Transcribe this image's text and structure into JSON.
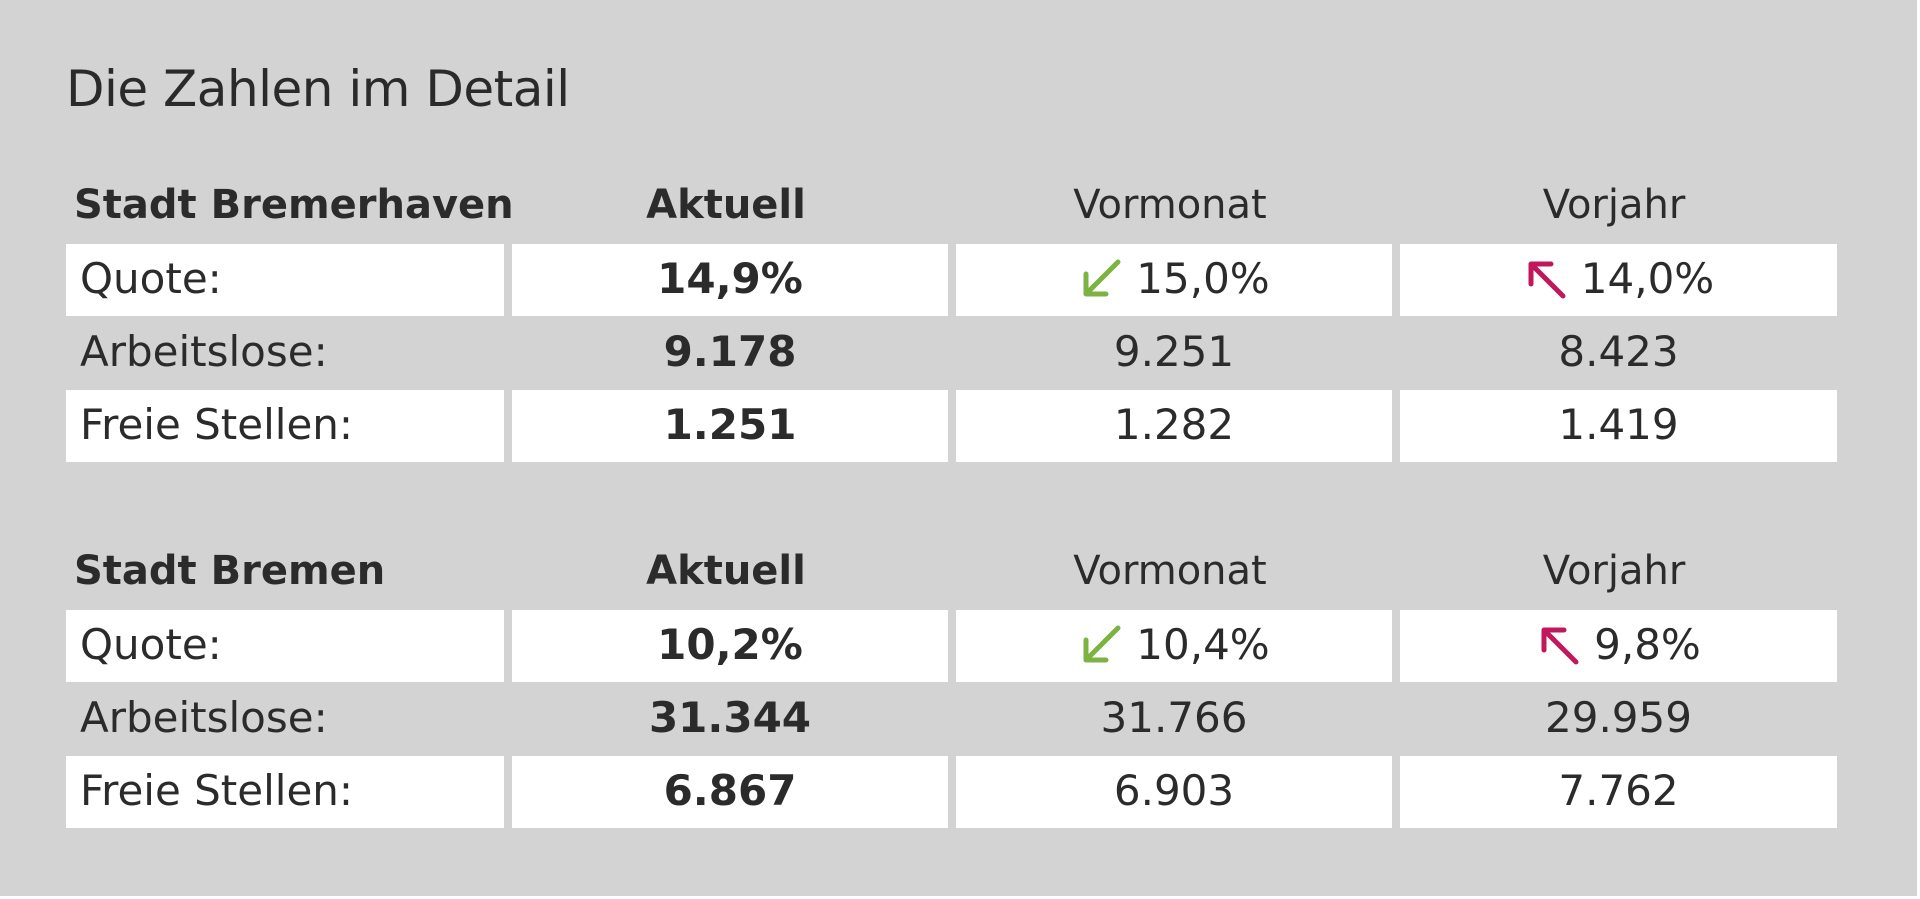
{
  "title": "Die Zahlen im Detail",
  "colors": {
    "down_arrow": "#7cb342",
    "up_arrow": "#c2185b"
  },
  "sections": [
    {
      "headers": {
        "city": "Stadt Bremerhaven",
        "current": "Aktuell",
        "prev_month": "Vormonat",
        "prev_year": "Vorjahr"
      },
      "rows": [
        {
          "label": "Quote:",
          "current": "14,9%",
          "prev_month": "15,0%",
          "prev_year": "14,0%",
          "prev_month_icon": "arrow-down-left-icon",
          "prev_year_icon": "arrow-up-left-icon"
        },
        {
          "label": "Arbeitslose:",
          "current": "9.178",
          "prev_month": "9.251",
          "prev_year": "8.423"
        },
        {
          "label": "Freie Stellen:",
          "current": "1.251",
          "prev_month": "1.282",
          "prev_year": "1.419"
        }
      ]
    },
    {
      "headers": {
        "city": "Stadt Bremen",
        "current": "Aktuell",
        "prev_month": "Vormonat",
        "prev_year": "Vorjahr"
      },
      "rows": [
        {
          "label": "Quote:",
          "current": "10,2%",
          "prev_month": "10,4%",
          "prev_year": "9,8%",
          "prev_month_icon": "arrow-down-left-icon",
          "prev_year_icon": "arrow-up-left-icon"
        },
        {
          "label": "Arbeitslose:",
          "current": "31.344",
          "prev_month": "31.766",
          "prev_year": "29.959"
        },
        {
          "label": "Freie Stellen:",
          "current": "6.867",
          "prev_month": "6.903",
          "prev_year": "7.762"
        }
      ]
    }
  ]
}
